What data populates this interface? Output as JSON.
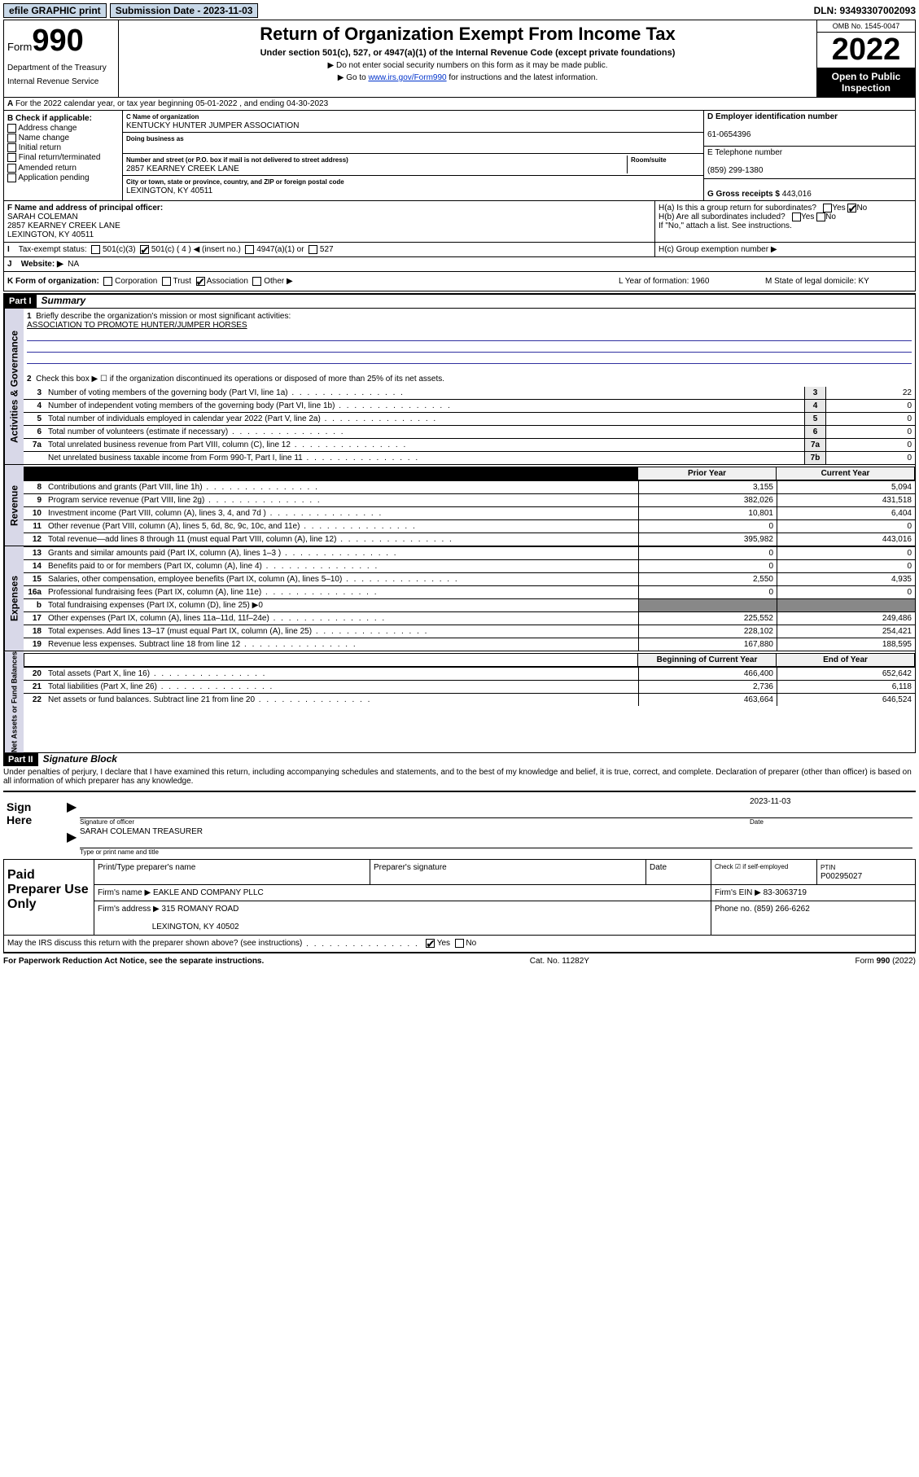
{
  "topbar": {
    "efile": "efile GRAPHIC print",
    "sub_label": "Submission Date - 2023-11-03",
    "dln": "DLN: 93493307002093"
  },
  "header": {
    "form_word": "Form",
    "form_num": "990",
    "dept": "Department of the Treasury",
    "irs": "Internal Revenue Service",
    "title": "Return of Organization Exempt From Income Tax",
    "sub": "Under section 501(c), 527, or 4947(a)(1) of the Internal Revenue Code (except private foundations)",
    "note1": "▶ Do not enter social security numbers on this form as it may be made public.",
    "note2_pre": "▶ Go to ",
    "note2_link": "www.irs.gov/Form990",
    "note2_post": " for instructions and the latest information.",
    "omb": "OMB No. 1545-0047",
    "year": "2022",
    "open": "Open to Public Inspection"
  },
  "lineA": "For the 2022 calendar year, or tax year beginning 05-01-2022    , and ending 04-30-2023",
  "colB": {
    "title": "B Check if applicable:",
    "items": [
      "Address change",
      "Name change",
      "Initial return",
      "Final return/terminated",
      "Amended return",
      "Application pending"
    ]
  },
  "colC": {
    "name_lbl": "C Name of organization",
    "name": "KENTUCKY HUNTER JUMPER ASSOCIATION",
    "dba_lbl": "Doing business as",
    "dba": "",
    "addr_lbl": "Number and street (or P.O. box if mail is not delivered to street address)",
    "room_lbl": "Room/suite",
    "addr": "2857 KEARNEY CREEK LANE",
    "city_lbl": "City or town, state or province, country, and ZIP or foreign postal code",
    "city": "LEXINGTON, KY  40511"
  },
  "colD": {
    "ein_lbl": "D Employer identification number",
    "ein": "61-0654396",
    "tel_lbl": "E Telephone number",
    "tel": "(859) 299-1380",
    "gross_lbl": "G Gross receipts $",
    "gross": "443,016"
  },
  "rowF": {
    "lbl": "F  Name and address of principal officer:",
    "name": "SARAH COLEMAN",
    "addr1": "2857 KEARNEY CREEK LANE",
    "addr2": "LEXINGTON, KY  40511"
  },
  "rowH": {
    "ha": "H(a)  Is this a group return for subordinates?",
    "hb": "H(b)  Are all subordinates included?",
    "hb_note": "If \"No,\" attach a list. See instructions.",
    "hc": "H(c)  Group exemption number ▶",
    "yes": "Yes",
    "no": "No"
  },
  "rowI": {
    "lbl": "Tax-exempt status:",
    "o1": "501(c)(3)",
    "o2": "501(c) ( 4 ) ◀ (insert no.)",
    "o3": "4947(a)(1) or",
    "o4": "527"
  },
  "rowJ": {
    "lbl": "Website: ▶",
    "val": "NA"
  },
  "rowK": {
    "lbl": "K Form of organization:",
    "opts": [
      "Corporation",
      "Trust",
      "Association",
      "Other ▶"
    ],
    "checked": 2,
    "l_lbl": "L Year of formation:",
    "l_val": "1960",
    "m_lbl": "M State of legal domicile:",
    "m_val": "KY"
  },
  "part1": {
    "hdr": "Part I",
    "title": "Summary",
    "side_ag": "Activities & Governance",
    "side_rev": "Revenue",
    "side_exp": "Expenses",
    "side_na": "Net Assets or Fund Balances",
    "q1": "Briefly describe the organization's mission or most significant activities:",
    "q1_ans": "ASSOCIATION TO PROMOTE HUNTER/JUMPER HORSES",
    "q2": "Check this box ▶ ☐  if the organization discontinued its operations or disposed of more than 25% of its net assets.",
    "lines_ag": [
      {
        "n": "3",
        "t": "Number of voting members of the governing body (Part VI, line 1a)",
        "bn": "3",
        "v": "22"
      },
      {
        "n": "4",
        "t": "Number of independent voting members of the governing body (Part VI, line 1b)",
        "bn": "4",
        "v": "0"
      },
      {
        "n": "5",
        "t": "Total number of individuals employed in calendar year 2022 (Part V, line 2a)",
        "bn": "5",
        "v": "0"
      },
      {
        "n": "6",
        "t": "Total number of volunteers (estimate if necessary)",
        "bn": "6",
        "v": "0"
      },
      {
        "n": "7a",
        "t": "Total unrelated business revenue from Part VIII, column (C), line 12",
        "bn": "7a",
        "v": "0"
      },
      {
        "n": "",
        "t": "Net unrelated business taxable income from Form 990-T, Part I, line 11",
        "bn": "7b",
        "v": "0"
      }
    ],
    "col_py": "Prior Year",
    "col_cy": "Current Year",
    "lines_rev": [
      {
        "n": "8",
        "t": "Contributions and grants (Part VIII, line 1h)",
        "v1": "3,155",
        "v2": "5,094"
      },
      {
        "n": "9",
        "t": "Program service revenue (Part VIII, line 2g)",
        "v1": "382,026",
        "v2": "431,518"
      },
      {
        "n": "10",
        "t": "Investment income (Part VIII, column (A), lines 3, 4, and 7d )",
        "v1": "10,801",
        "v2": "6,404"
      },
      {
        "n": "11",
        "t": "Other revenue (Part VIII, column (A), lines 5, 6d, 8c, 9c, 10c, and 11e)",
        "v1": "0",
        "v2": "0"
      },
      {
        "n": "12",
        "t": "Total revenue—add lines 8 through 11 (must equal Part VIII, column (A), line 12)",
        "v1": "395,982",
        "v2": "443,016"
      }
    ],
    "lines_exp": [
      {
        "n": "13",
        "t": "Grants and similar amounts paid (Part IX, column (A), lines 1–3 )",
        "v1": "0",
        "v2": "0"
      },
      {
        "n": "14",
        "t": "Benefits paid to or for members (Part IX, column (A), line 4)",
        "v1": "0",
        "v2": "0"
      },
      {
        "n": "15",
        "t": "Salaries, other compensation, employee benefits (Part IX, column (A), lines 5–10)",
        "v1": "2,550",
        "v2": "4,935"
      },
      {
        "n": "16a",
        "t": "Professional fundraising fees (Part IX, column (A), line 11e)",
        "v1": "0",
        "v2": "0"
      },
      {
        "n": "b",
        "t": "Total fundraising expenses (Part IX, column (D), line 25) ▶0",
        "v1": "",
        "v2": ""
      },
      {
        "n": "17",
        "t": "Other expenses (Part IX, column (A), lines 11a–11d, 11f–24e)",
        "v1": "225,552",
        "v2": "249,486"
      },
      {
        "n": "18",
        "t": "Total expenses. Add lines 13–17 (must equal Part IX, column (A), line 25)",
        "v1": "228,102",
        "v2": "254,421"
      },
      {
        "n": "19",
        "t": "Revenue less expenses. Subtract line 18 from line 12",
        "v1": "167,880",
        "v2": "188,595"
      }
    ],
    "col_boy": "Beginning of Current Year",
    "col_eoy": "End of Year",
    "lines_na": [
      {
        "n": "20",
        "t": "Total assets (Part X, line 16)",
        "v1": "466,400",
        "v2": "652,642"
      },
      {
        "n": "21",
        "t": "Total liabilities (Part X, line 26)",
        "v1": "2,736",
        "v2": "6,118"
      },
      {
        "n": "22",
        "t": "Net assets or fund balances. Subtract line 21 from line 20",
        "v1": "463,664",
        "v2": "646,524"
      }
    ]
  },
  "part2": {
    "hdr": "Part II",
    "title": "Signature Block",
    "decl": "Under penalties of perjury, I declare that I have examined this return, including accompanying schedules and statements, and to the best of my knowledge and belief, it is true, correct, and complete. Declaration of preparer (other than officer) is based on all information of which preparer has any knowledge.",
    "sign_here": "Sign Here",
    "sig_officer": "Signature of officer",
    "date_lbl": "Date",
    "date": "2023-11-03",
    "officer": "SARAH COLEMAN  TREASURER",
    "type_name": "Type or print name and title",
    "paid": "Paid Preparer Use Only",
    "p_name_lbl": "Print/Type preparer's name",
    "p_sig_lbl": "Preparer's signature",
    "p_date_lbl": "Date",
    "p_check": "Check ☑ if self-employed",
    "ptin_lbl": "PTIN",
    "ptin": "P00295027",
    "firm_name_lbl": "Firm's name    ▶",
    "firm_name": "EAKLE AND COMPANY PLLC",
    "firm_ein_lbl": "Firm's EIN ▶",
    "firm_ein": "83-3063719",
    "firm_addr_lbl": "Firm's address ▶",
    "firm_addr1": "315 ROMANY ROAD",
    "firm_addr2": "LEXINGTON, KY  40502",
    "phone_lbl": "Phone no.",
    "phone": "(859) 266-6262",
    "may": "May the IRS discuss this return with the preparer shown above? (see instructions)"
  },
  "footer": {
    "l": "For Paperwork Reduction Act Notice, see the separate instructions.",
    "m": "Cat. No. 11282Y",
    "r": "Form 990 (2022)"
  }
}
